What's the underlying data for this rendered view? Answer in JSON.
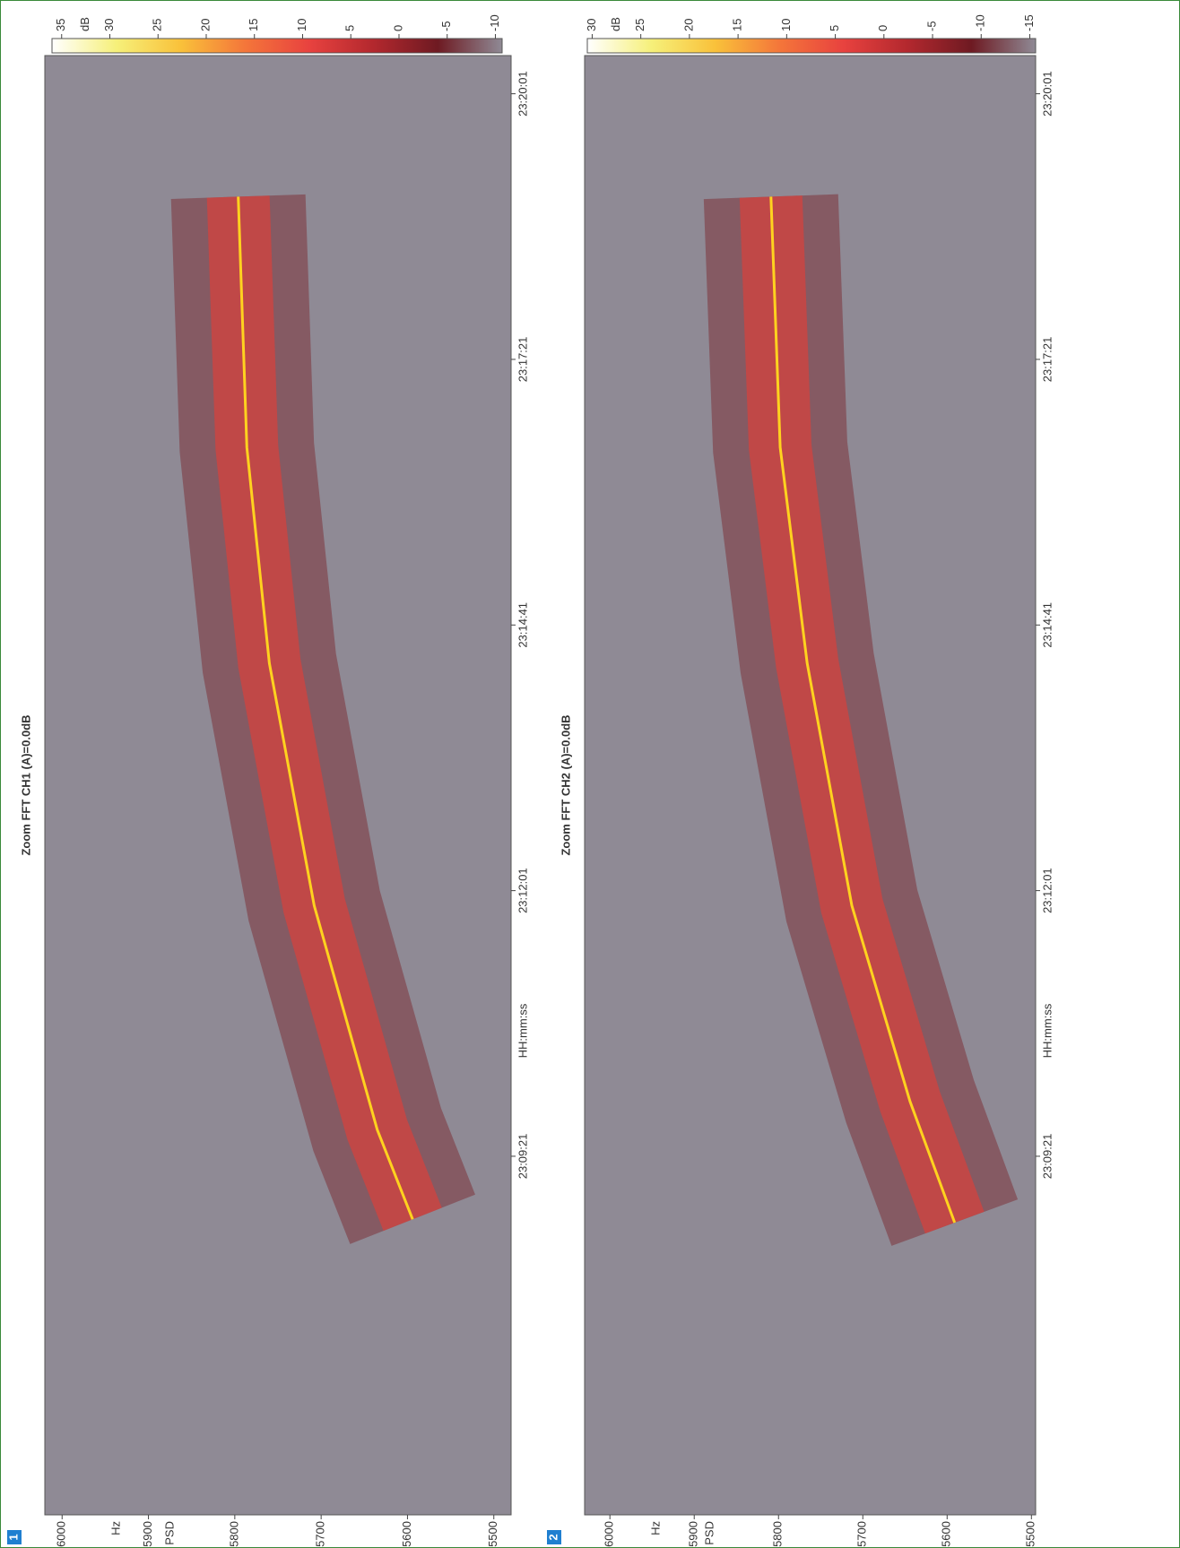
{
  "chart_data": [
    {
      "type": "line",
      "panel_label": "1",
      "title": "Zoom FFT CH1 (A)=0.0dB",
      "xlabel": "HH:mm:ss",
      "y_unit": "Hz",
      "ylabel": "PSD",
      "background": "#8f8a95",
      "x": [
        83323,
        83377,
        83512,
        83658,
        83788,
        83939
      ],
      "values": [
        5594,
        5635,
        5708,
        5760,
        5786,
        5796
      ],
      "color": "#ffd21f",
      "xlim": [
        83145,
        84024
      ],
      "xticks": [
        {
          "value": 83361,
          "label": "23:09:21"
        },
        {
          "value": 83521,
          "label": "23:12:01"
        },
        {
          "value": 83681,
          "label": "23:14:41"
        },
        {
          "value": 83841,
          "label": "23:17:21"
        },
        {
          "value": 84001,
          "label": "23:20:01"
        }
      ],
      "ylim": [
        5480,
        6020
      ],
      "yticks": [
        6000,
        5900,
        5800,
        5700,
        5600,
        5500
      ],
      "colorbar": {
        "label": "dB",
        "lim": [
          -10.7,
          36
        ],
        "ticks": [
          35,
          30,
          25,
          20,
          15,
          10,
          5,
          0,
          -5,
          -10
        ],
        "colors": [
          "#ffffff",
          "#f6f07a",
          "#f9c13a",
          "#f4763a",
          "#e8423f",
          "#b3282e",
          "#6e1a22",
          "#8f8a95"
        ]
      }
    },
    {
      "type": "line",
      "panel_label": "2",
      "title": "Zoom FFT CH2 (A)=0.0dB",
      "xlabel": "HH:mm:ss",
      "y_unit": "Hz",
      "ylabel": "PSD",
      "background": "#8f8a95",
      "x": [
        83321,
        83394,
        83512,
        83658,
        83788,
        83939
      ],
      "values": [
        5591,
        5644,
        5713,
        5766,
        5798,
        5809
      ],
      "color": "#ffd21f",
      "xlim": [
        83145,
        84024
      ],
      "xticks": [
        {
          "value": 83361,
          "label": "23:09:21"
        },
        {
          "value": 83521,
          "label": "23:12:01"
        },
        {
          "value": 83681,
          "label": "23:14:41"
        },
        {
          "value": 83841,
          "label": "23:17:21"
        },
        {
          "value": 84001,
          "label": "23:20:01"
        }
      ],
      "ylim": [
        5495,
        6030
      ],
      "yticks": [
        6000,
        5900,
        5800,
        5700,
        5600,
        5500
      ],
      "colorbar": {
        "label": "dB",
        "lim": [
          -15.6,
          30.5
        ],
        "ticks": [
          30,
          25,
          20,
          15,
          10,
          5,
          0,
          -5,
          -10,
          -15
        ],
        "colors": [
          "#ffffff",
          "#f6f07a",
          "#f9c13a",
          "#f4763a",
          "#e8423f",
          "#b3282e",
          "#6e1a22",
          "#8f8a95"
        ]
      }
    }
  ]
}
